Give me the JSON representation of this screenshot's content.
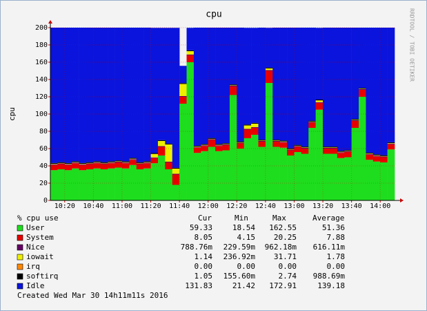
{
  "chart_data": {
    "type": "stacked-bar",
    "title": "cpu",
    "y_label": "cpu",
    "side_note": "RRDTOOL / TOBI OETIKER",
    "x": [
      "10:10",
      "10:15",
      "10:20",
      "10:25",
      "10:30",
      "10:35",
      "10:40",
      "10:45",
      "10:50",
      "10:55",
      "11:00",
      "11:05",
      "11:10",
      "11:15",
      "11:20",
      "11:25",
      "11:30",
      "11:35",
      "11:40",
      "11:45",
      "11:50",
      "11:55",
      "12:00",
      "12:05",
      "12:10",
      "12:15",
      "12:20",
      "12:25",
      "12:30",
      "12:35",
      "12:40",
      "12:45",
      "12:50",
      "12:55",
      "13:00",
      "13:05",
      "13:10",
      "13:15",
      "13:20",
      "13:25",
      "13:30",
      "13:35",
      "13:40",
      "13:45",
      "13:50",
      "13:55",
      "14:00",
      "14:05"
    ],
    "xlim": [
      "10:10",
      "14:10"
    ],
    "xticks": [
      "10:20",
      "10:40",
      "11:00",
      "11:20",
      "11:40",
      "12:00",
      "12:20",
      "12:40",
      "13:00",
      "13:20",
      "13:40",
      "14:00"
    ],
    "ylim": [
      0,
      200
    ],
    "yticks": [
      0,
      20,
      40,
      60,
      80,
      100,
      120,
      140,
      160,
      180,
      200
    ],
    "grid": true,
    "legend_title": "% cpu use",
    "legend_columns": [
      "Cur",
      "Min",
      "Max",
      "Average"
    ],
    "series": [
      {
        "name": "User",
        "color": "#1edd1e",
        "stats": [
          "59.33",
          "18.54",
          "162.55",
          "51.36"
        ],
        "values": [
          35,
          36,
          35,
          37,
          35,
          36,
          37,
          36,
          37,
          38,
          37,
          41,
          36,
          37,
          43,
          52,
          36,
          18,
          112,
          160,
          55,
          57,
          62,
          57,
          58,
          122,
          60,
          72,
          76,
          62,
          136,
          62,
          61,
          52,
          56,
          54,
          84,
          105,
          54,
          54,
          49,
          50,
          84,
          120,
          47,
          45,
          44,
          59
        ]
      },
      {
        "name": "System",
        "color": "#e60000",
        "stats": [
          "8.05",
          "4.15",
          "20.25",
          "7.88"
        ],
        "values": [
          6,
          6,
          6,
          6,
          6,
          6,
          6,
          6,
          6,
          6,
          6,
          6,
          6,
          6,
          6,
          10,
          8,
          12,
          8,
          8,
          6,
          6,
          8,
          6,
          6,
          10,
          6,
          10,
          8,
          6,
          14,
          6,
          6,
          6,
          6,
          6,
          6,
          8,
          6,
          6,
          6,
          6,
          8,
          8,
          6,
          6,
          6,
          6
        ]
      },
      {
        "name": "Nice",
        "color": "#660066",
        "stats": [
          "788.76m",
          "229.59m",
          "962.18m",
          "616.11m"
        ],
        "values": [
          0.8,
          0.8,
          0.8,
          0.8,
          0.8,
          0.8,
          0.8,
          0.8,
          0.8,
          0.8,
          0.8,
          0.8,
          0.8,
          0.8,
          0.8,
          0.8,
          0.8,
          0.8,
          0.8,
          0.8,
          0.8,
          0.8,
          0.8,
          0.8,
          0.8,
          0.8,
          0.8,
          0.8,
          0.8,
          0.8,
          0.8,
          0.8,
          0.8,
          0.8,
          0.8,
          0.8,
          0.8,
          0.8,
          0.8,
          0.8,
          0.8,
          0.8,
          0.8,
          0.8,
          0.8,
          0.8,
          0.8,
          0.8
        ]
      },
      {
        "name": "iowait",
        "color": "#eeee00",
        "stats": [
          "1.14",
          "236.92m",
          "31.71",
          "1.78"
        ],
        "values": [
          0.5,
          0.5,
          0.5,
          0.5,
          0.5,
          0.5,
          0.5,
          0.5,
          0.5,
          0.5,
          0.5,
          0.5,
          0.5,
          0.5,
          4,
          6,
          20,
          6,
          14,
          4,
          0.5,
          0.5,
          0.5,
          0.5,
          0.5,
          0.5,
          0.5,
          4,
          4,
          0.5,
          2,
          0.5,
          0.5,
          0.5,
          0.5,
          0.5,
          0.5,
          2,
          0.5,
          0.5,
          0.5,
          0.5,
          0.5,
          0.5,
          0.5,
          0.5,
          0.5,
          0.5
        ]
      },
      {
        "name": "irq",
        "color": "#ff8800",
        "stats": [
          "0.00",
          "0.00",
          "0.00",
          "0.00"
        ],
        "values": [
          0,
          0,
          0,
          0,
          0,
          0,
          0,
          0,
          0,
          0,
          0,
          0,
          0,
          0,
          0,
          0,
          0,
          0,
          0,
          0,
          0,
          0,
          0,
          0,
          0,
          0,
          0,
          0,
          0,
          0,
          0,
          0,
          0,
          0,
          0,
          0,
          0,
          0,
          0,
          0,
          0,
          0,
          0,
          0,
          0,
          0,
          0,
          0
        ]
      },
      {
        "name": "softirq",
        "color": "#000000",
        "stats": [
          "1.05",
          "155.60m",
          "2.74",
          "988.69m"
        ],
        "values": [
          1,
          1,
          1,
          1,
          1,
          1,
          1,
          1,
          1,
          1,
          1,
          1,
          1,
          1,
          1,
          1,
          1,
          1,
          1,
          1,
          1,
          1,
          1,
          1,
          1,
          1,
          1,
          1,
          1,
          1,
          1,
          1,
          1,
          1,
          1,
          1,
          1,
          1,
          1,
          1,
          1,
          1,
          1,
          1,
          1,
          1,
          1,
          1
        ]
      },
      {
        "name": "Idle",
        "color": "#0a14dc",
        "stats": [
          "131.83",
          "21.42",
          "172.91",
          "139.18"
        ],
        "values": [
          157,
          156,
          157,
          155,
          157,
          156,
          155,
          156,
          155,
          154,
          155,
          151,
          156,
          155,
          145,
          130,
          134,
          162,
          20,
          26,
          137,
          135,
          128,
          135,
          134,
          66,
          132,
          112,
          110,
          130,
          46,
          130,
          131,
          140,
          136,
          138,
          108,
          83,
          138,
          138,
          143,
          142,
          106,
          70,
          145,
          147,
          148,
          133
        ]
      }
    ],
    "footer": "Created Wed Mar 30 14h11m11s 2016"
  }
}
